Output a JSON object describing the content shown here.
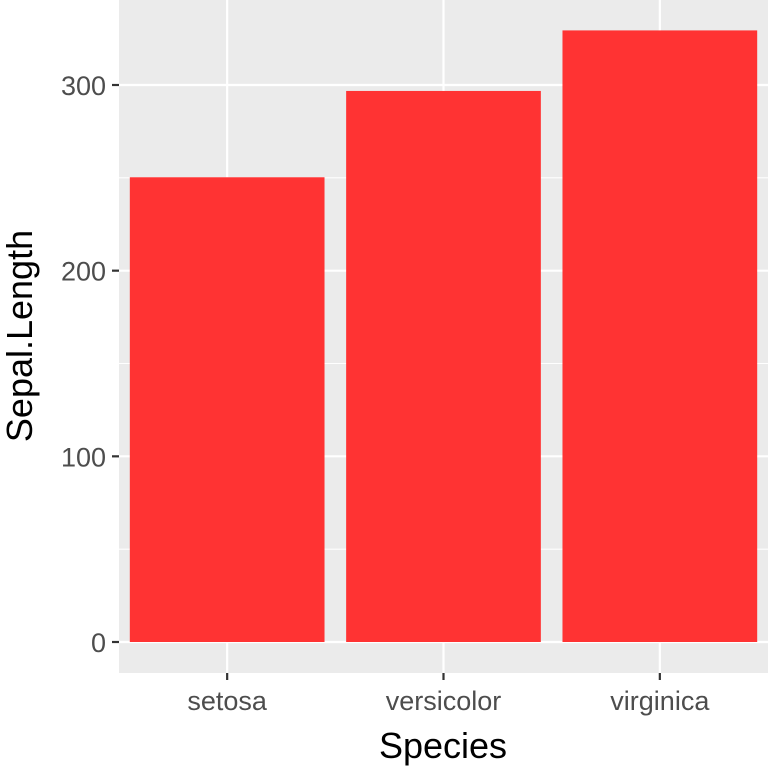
{
  "chart_data": {
    "type": "bar",
    "categories": [
      "setosa",
      "versicolor",
      "virginica"
    ],
    "values": [
      250.3,
      296.8,
      329.4
    ],
    "xlabel": "Species",
    "ylabel": "Sepal.Length",
    "ylim": [
      -16.5,
      345.9
    ],
    "yticks": [
      0,
      100,
      200,
      300
    ],
    "y_minor_ticks": [
      50,
      150,
      250
    ],
    "grid": true,
    "legend": "none",
    "colors": {
      "bar": "#FF3333",
      "panel_background": "#EBEBEB",
      "grid": "#FFFFFF",
      "tick_text": "#4D4D4D",
      "axis_title": "#000000"
    }
  }
}
